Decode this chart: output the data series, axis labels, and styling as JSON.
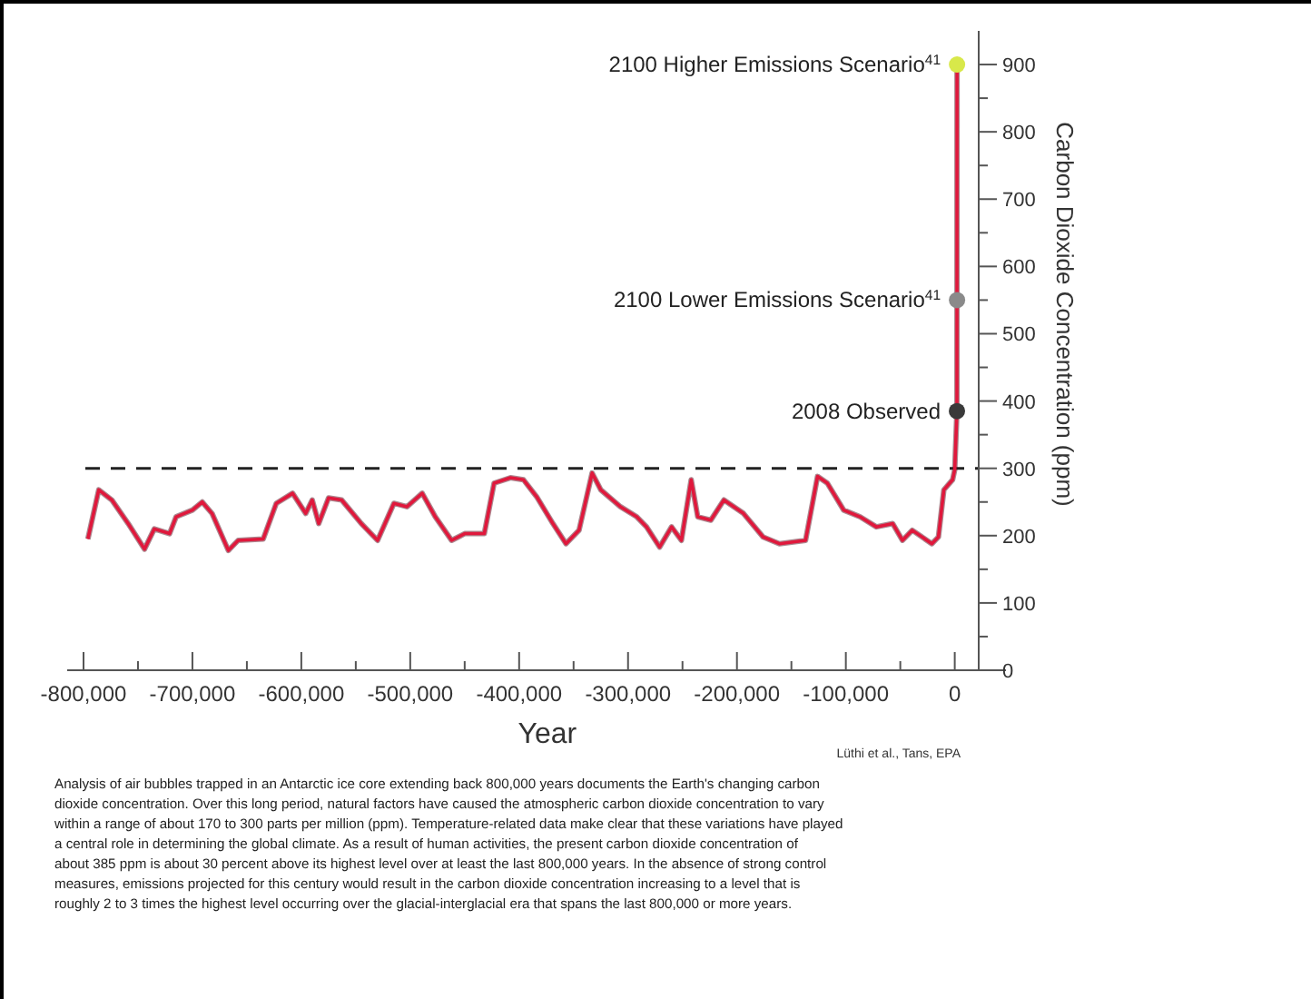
{
  "chart_data": {
    "type": "line",
    "xlabel": "Year",
    "ylabel": "Carbon Dioxide Concentration (ppm)",
    "xlim": [
      -815000,
      22000
    ],
    "ylim": [
      0,
      950
    ],
    "xticks": [
      {
        "value": -800000,
        "label": "-800,000"
      },
      {
        "value": -750000,
        "label": null
      },
      {
        "value": -700000,
        "label": "-700,000"
      },
      {
        "value": -650000,
        "label": null
      },
      {
        "value": -600000,
        "label": "-600,000"
      },
      {
        "value": -550000,
        "label": null
      },
      {
        "value": -500000,
        "label": "-500,000"
      },
      {
        "value": -450000,
        "label": null
      },
      {
        "value": -400000,
        "label": "-400,000"
      },
      {
        "value": -350000,
        "label": null
      },
      {
        "value": -300000,
        "label": "-300,000"
      },
      {
        "value": -250000,
        "label": null
      },
      {
        "value": -200000,
        "label": "-200,000"
      },
      {
        "value": -150000,
        "label": null
      },
      {
        "value": -100000,
        "label": "-100,000"
      },
      {
        "value": -50000,
        "label": null
      },
      0
    ],
    "yticks": [
      0,
      {
        "value": 50,
        "label": null
      },
      100,
      {
        "value": 150,
        "label": null
      },
      200,
      {
        "value": 250,
        "label": null
      },
      300,
      {
        "value": 350,
        "label": null
      },
      400,
      {
        "value": 450,
        "label": null
      },
      500,
      {
        "value": 550,
        "label": null
      },
      600,
      {
        "value": 650,
        "label": null
      },
      700,
      {
        "value": 750,
        "label": null
      },
      800,
      {
        "value": 850,
        "label": null
      },
      900
    ],
    "series": [
      {
        "color": "#e0183c",
        "x": [
          -796000,
          -786000,
          -774000,
          -759000,
          -744000,
          -735000,
          -721000,
          -715000,
          -700000,
          -691000,
          -682000,
          -667000,
          -658000,
          -635000,
          -623000,
          -608000,
          -596000,
          -590000,
          -584000,
          -575000,
          -563000,
          -545000,
          -530000,
          -515000,
          -503000,
          -489000,
          -477000,
          -462000,
          -450000,
          -432000,
          -423000,
          -408000,
          -396000,
          -384000,
          -369000,
          -357000,
          -345000,
          -333000,
          -325000,
          -307000,
          -292000,
          -283000,
          -271000,
          -260000,
          -251000,
          -242000,
          -236000,
          -224000,
          -212000,
          -194000,
          -176000,
          -161000,
          -137000,
          -126000,
          -117000,
          -102000,
          -87000,
          -72000,
          -57000,
          -48000,
          -39000,
          -21000,
          -15000,
          -10000,
          -2000,
          0,
          2008,
          2100
        ],
        "values": [
          195,
          268,
          253,
          218,
          180,
          210,
          203,
          228,
          238,
          250,
          233,
          178,
          193,
          195,
          248,
          263,
          233,
          253,
          218,
          256,
          253,
          218,
          193,
          248,
          243,
          263,
          228,
          193,
          203,
          203,
          278,
          286,
          283,
          258,
          218,
          188,
          208,
          293,
          268,
          243,
          228,
          213,
          183,
          213,
          193,
          283,
          228,
          223,
          253,
          233,
          198,
          188,
          193,
          288,
          278,
          238,
          228,
          213,
          218,
          193,
          208,
          188,
          198,
          268,
          283,
          298,
          385,
          900
        ]
      },
      {
        "type": "scatter",
        "marker": "circle",
        "x": [
          2008,
          2100,
          2100
        ],
        "values": [
          385,
          550,
          900
        ],
        "colors": [
          "#3a3a3a",
          "#8a8a8a",
          "#d8e84a"
        ]
      }
    ],
    "ref_lines": [
      {
        "axis": "y",
        "value": 300,
        "line_style": "dashed",
        "color": "#222222"
      }
    ],
    "grid": false,
    "annotations": [
      "2008 Observed",
      "2100 Lower Emissions Scenario$^{41}$",
      "2100 Higher Emissions Scenario$^{41}$",
      "Lüthi et al., Tans, EPA",
      "Analysis of air bubbles trapped in an Antarctic ice core extending back 800,000 years documents the Earth's changing carbon dioxide concentration. Over this long period, natural factors have caused the atmospheric carbon dioxide concentration to vary within a range of about 170 to 300 parts per million (ppm). Temperature-related data make clear that these variations have played a central role in determining the global climate. As a result of human activities, the present carbon dioxide concentration of about 385 ppm is about 30 percent above its highest level over at least the last 800,000 years. In the absence of strong control measures, emissions projected for this century would result in the carbon dioxide concentration increasing to a level that is roughly 2 to 3 times the highest level occurring over the glacial-interglacial era that spans the last 800,000 or more years."
    ]
  }
}
